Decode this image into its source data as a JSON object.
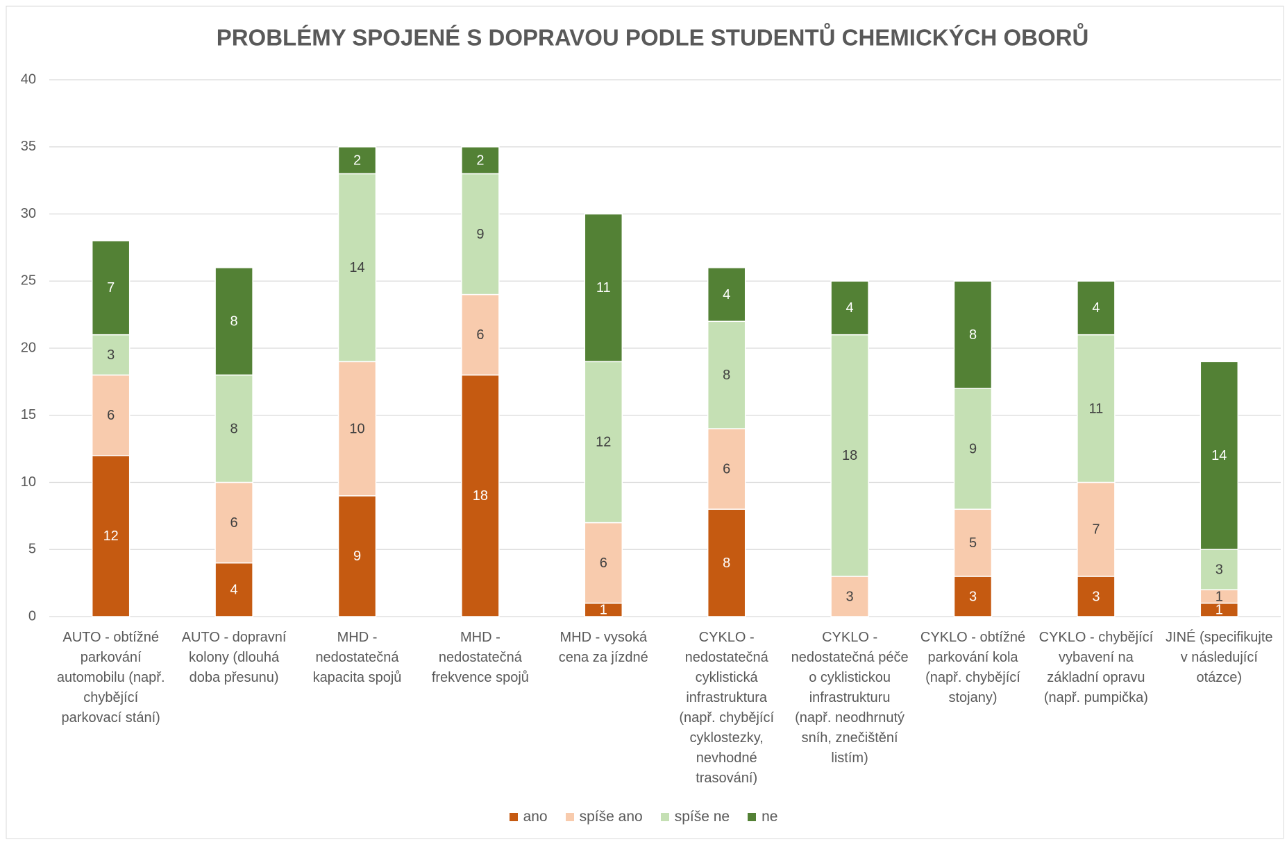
{
  "chart_data": {
    "type": "stacked_bar",
    "title": "PROBLÉMY SPOJENÉ S DOPRAVOU PODLE STUDENTŮ CHEMICKÝCH OBORŮ",
    "categories": [
      "AUTO - obtížné parkování automobilu (např. chybějící parkovací stání)",
      "AUTO - dopravní kolony (dlouhá doba přesunu)",
      "MHD - nedostatečná kapacita spojů",
      "MHD - nedostatečná frekvence spojů",
      "MHD - vysoká cena za jízdné",
      "CYKLO - nedostatečná cyklistická infrastruktura (např. chybějící cyklostezky, nevhodné trasování)",
      "CYKLO - nedostatečná péče o cyklistickou infrastrukturu (např. neodhrnutý sníh, znečištění listím)",
      "CYKLO - obtížné parkování kola (např. chybějící stojany)",
      "CYKLO - chybějící vybavení na základní opravu (např. pumpička)",
      "JINÉ (specifikujte v následující otázce)"
    ],
    "series": [
      {
        "name": "ano",
        "color": "#c55a11",
        "values": [
          12,
          4,
          9,
          18,
          1,
          8,
          null,
          3,
          3,
          1
        ]
      },
      {
        "name": "spíše ano",
        "color": "#f8cbad",
        "values": [
          6,
          6,
          10,
          6,
          6,
          6,
          3,
          5,
          7,
          1
        ]
      },
      {
        "name": "spíše ne",
        "color": "#c5e0b4",
        "values": [
          3,
          8,
          14,
          9,
          12,
          8,
          18,
          9,
          11,
          3
        ]
      },
      {
        "name": "ne",
        "color": "#538135",
        "values": [
          7,
          8,
          2,
          2,
          11,
          4,
          4,
          8,
          4,
          14
        ]
      }
    ],
    "ylim": [
      0,
      40
    ],
    "yticks": [
      0,
      5,
      10,
      15,
      20,
      25,
      30,
      35,
      40
    ],
    "grid": true,
    "legend": "bottom"
  }
}
